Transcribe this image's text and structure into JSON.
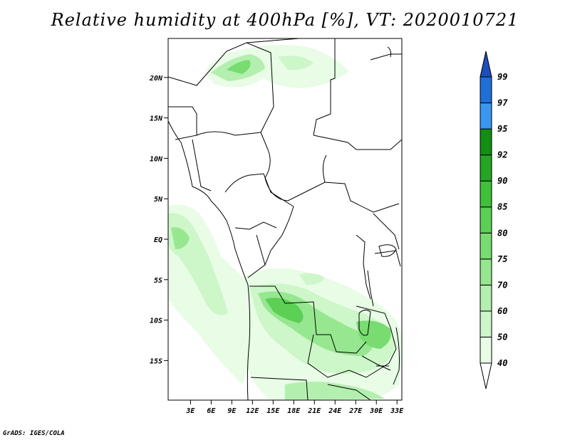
{
  "title": "Relative humidity at 400hPa [%], VT: 2020010721",
  "credit": "GrADS: IGES/COLA",
  "map": {
    "lat_ticks": [
      {
        "lat": 20,
        "label": "20N"
      },
      {
        "lat": 15,
        "label": "15N"
      },
      {
        "lat": 10,
        "label": "10N"
      },
      {
        "lat": 5,
        "label": "5N"
      },
      {
        "lat": 0,
        "label": "EQ"
      },
      {
        "lat": -5,
        "label": "5S"
      },
      {
        "lat": -10,
        "label": "10S"
      },
      {
        "lat": -15,
        "label": "15S"
      }
    ],
    "lon_ticks": [
      {
        "lon": 3,
        "label": "3E"
      },
      {
        "lon": 6,
        "label": "6E"
      },
      {
        "lon": 9,
        "label": "9E"
      },
      {
        "lon": 12,
        "label": "12E"
      },
      {
        "lon": 15,
        "label": "15E"
      },
      {
        "lon": 18,
        "label": "18E"
      },
      {
        "lon": 21,
        "label": "21E"
      },
      {
        "lon": 24,
        "label": "24E"
      },
      {
        "lon": 27,
        "label": "27E"
      },
      {
        "lon": 30,
        "label": "30E"
      },
      {
        "lon": 33,
        "label": "33E"
      }
    ]
  },
  "colorbar": {
    "levels": [
      "40",
      "50",
      "60",
      "70",
      "75",
      "80",
      "85",
      "90",
      "92",
      "95",
      "97",
      "99"
    ],
    "colors": [
      "#ffffff",
      "#e8fce6",
      "#cdf6c9",
      "#b3efae",
      "#96e78f",
      "#78dc70",
      "#5ccf55",
      "#3fbf3a",
      "#24a524",
      "#128e12",
      "#3a96f0",
      "#1f6fd8",
      "#1c4fb8"
    ]
  }
}
